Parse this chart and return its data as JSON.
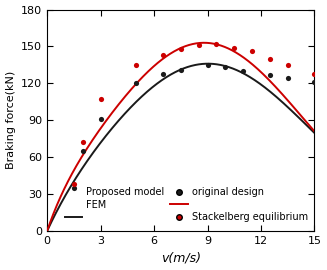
{
  "xlabel": "v(m/s)",
  "ylabel": "Braking force(kN)",
  "xlim": [
    0,
    15
  ],
  "ylim": [
    0,
    180
  ],
  "xticks": [
    0,
    3,
    6,
    9,
    12,
    15
  ],
  "yticks": [
    0,
    30,
    60,
    90,
    120,
    150,
    180
  ],
  "black_dots_x": [
    1.5,
    2.0,
    3.0,
    5.0,
    6.5,
    7.5,
    9.0,
    10.0,
    11.0,
    12.5,
    13.5,
    15.0
  ],
  "black_dots_y": [
    35,
    65,
    91,
    120,
    128,
    131,
    135,
    133,
    130,
    127,
    124,
    121
  ],
  "red_dots_x": [
    1.5,
    2.0,
    3.0,
    5.0,
    6.5,
    7.5,
    8.5,
    9.5,
    10.5,
    11.5,
    12.5,
    13.5,
    15.0
  ],
  "red_dots_y": [
    38,
    72,
    107,
    135,
    143,
    148,
    151,
    152,
    149,
    146,
    140,
    135,
    128
  ],
  "black_color": "#1a1a1a",
  "red_color": "#cc0000",
  "legend_proposed": "Proposed model",
  "legend_fem": "FEM",
  "legend_original": "original design",
  "legend_stackelberg": "Stackelberg equilibrium",
  "figsize": [
    3.27,
    2.7
  ],
  "dpi": 100,
  "black_peak": 136,
  "black_tau": 1.3,
  "black_vpeak": 9.0,
  "black_sigma": 5.8,
  "red_peak": 153,
  "red_tau": 1.0,
  "red_vpeak": 8.8,
  "red_sigma": 5.5
}
